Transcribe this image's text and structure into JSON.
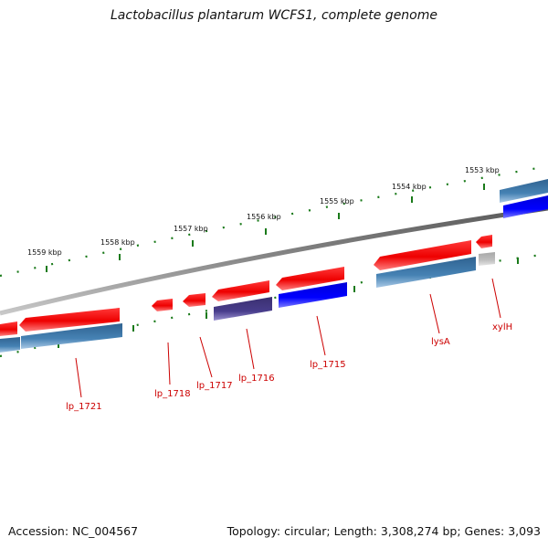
{
  "title": "Lactobacillus plantarum WCFS1, complete genome",
  "accession": "Accession: NC_004567",
  "topology": "Topology: circular; Length: 3,308,274 bp; Genes: 3,093",
  "kbp_labels": [
    "1553 kbp",
    "1554 kbp",
    "1555 kbp",
    "1556 kbp",
    "1557 kbp",
    "1558 kbp",
    "1559 kbp"
  ],
  "gene_labels": [
    "xylH",
    "lysA",
    "lp_1715",
    "lp_1716",
    "lp_1717",
    "lp_1718",
    "lp_1721"
  ],
  "colors": {
    "forward_feature": "#ff0000",
    "cds_blue": "#4682b4",
    "cds_bright_blue": "#0000ff",
    "cds_purple": "#483d8b",
    "cds_grey": "#c0c0c0",
    "backbone": "#808080",
    "tick_green": "#1a7a1a",
    "label_red": "#cc0000"
  }
}
